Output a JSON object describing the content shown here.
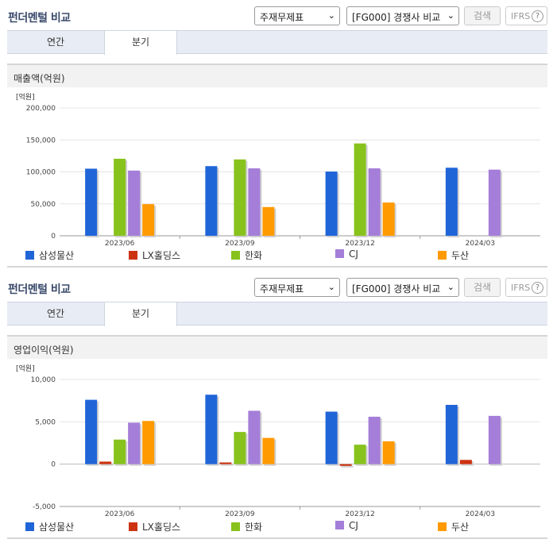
{
  "panels": [
    {
      "title": "펀더멘털 비교",
      "select1": "주재무제표",
      "select2": "[FG000] 경쟁사 비교",
      "search_label": "검색",
      "ifrs_label": "IFRS",
      "ifrs_help": "?",
      "tabs": [
        "연간",
        "분기"
      ],
      "active_tab": 1,
      "section_title": "매출액(억원)"
    },
    {
      "title": "펀더멘털 비교",
      "select1": "주재무제표",
      "select2": "[FG000] 경쟁사 비교",
      "search_label": "검색",
      "ifrs_label": "IFRS",
      "ifrs_help": "?",
      "tabs": [
        "연간",
        "분기"
      ],
      "active_tab": 1,
      "section_title": "영업이익(억원)"
    }
  ],
  "chart_data": [
    {
      "type": "bar",
      "unit_label": "[억원]",
      "categories": [
        "2023/06",
        "2023/09",
        "2023/12",
        "2024/03"
      ],
      "ylim": [
        0,
        200000
      ],
      "yticks": [
        0,
        50000,
        100000,
        150000,
        200000
      ],
      "ytick_labels": [
        "0",
        "50,000",
        "100,000",
        "150,000",
        "200,000"
      ],
      "series": [
        {
          "name": "삼성물산",
          "color": "#2065d8",
          "values": [
            105000,
            109000,
            100500,
            106500
          ]
        },
        {
          "name": "LX홀딩스",
          "color": "#cc3311",
          "values": [
            null,
            null,
            null,
            null
          ]
        },
        {
          "name": "한화",
          "color": "#88c21c",
          "values": [
            120500,
            119500,
            144500,
            null
          ]
        },
        {
          "name": "CJ",
          "color": "#a47ed8",
          "values": [
            102000,
            105500,
            105500,
            103500
          ]
        },
        {
          "name": "두산",
          "color": "#ff9a00",
          "values": [
            49500,
            45000,
            52000,
            null
          ]
        }
      ]
    },
    {
      "type": "bar",
      "unit_label": "[억원]",
      "categories": [
        "2023/06",
        "2023/09",
        "2023/12",
        "2024/03"
      ],
      "ylim": [
        -5000,
        10000
      ],
      "yticks": [
        -5000,
        0,
        5000,
        10000
      ],
      "ytick_labels": [
        "-5,000",
        "0",
        "5,000",
        "10,000"
      ],
      "series": [
        {
          "name": "삼성물산",
          "color": "#2065d8",
          "values": [
            7600,
            8200,
            6200,
            7000
          ]
        },
        {
          "name": "LX홀딩스",
          "color": "#cc3311",
          "values": [
            300,
            200,
            -200,
            500
          ]
        },
        {
          "name": "한화",
          "color": "#88c21c",
          "values": [
            2900,
            3800,
            2300,
            null
          ]
        },
        {
          "name": "CJ",
          "color": "#a47ed8",
          "values": [
            4900,
            6300,
            5600,
            5700
          ]
        },
        {
          "name": "두산",
          "color": "#ff9a00",
          "values": [
            5100,
            3100,
            2700,
            null
          ]
        }
      ]
    }
  ]
}
